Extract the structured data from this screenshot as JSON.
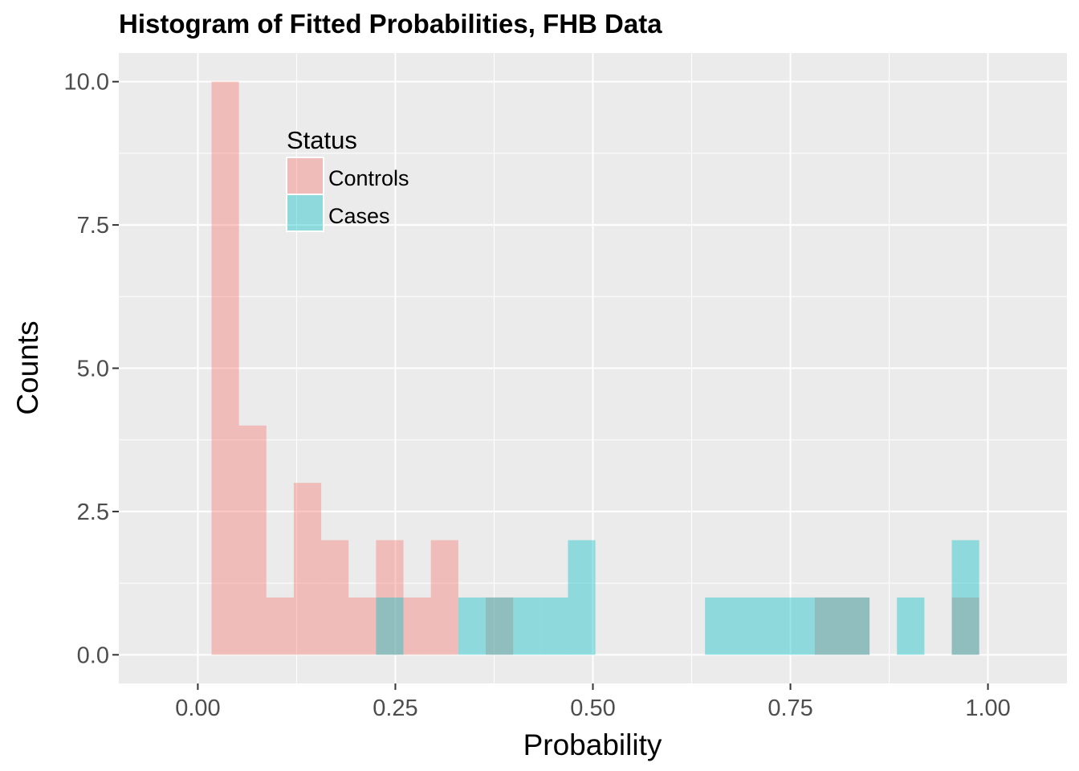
{
  "chart_data": {
    "type": "bar",
    "title": "Histogram of Fitted Probabilities, FHB Data",
    "xlabel": "Probability",
    "ylabel": "Counts",
    "xlim": [
      -0.1,
      1.1
    ],
    "ylim": [
      -0.5,
      10.5
    ],
    "x_ticks": [
      0.0,
      0.25,
      0.5,
      0.75,
      1.0
    ],
    "x_tick_labels": [
      "0.00",
      "0.25",
      "0.50",
      "0.75",
      "1.00"
    ],
    "y_ticks": [
      0.0,
      2.5,
      5.0,
      7.5,
      10.0
    ],
    "y_tick_labels": [
      "0.0",
      "2.5",
      "5.0",
      "7.5",
      "10.0"
    ],
    "grid": true,
    "legend": {
      "title": "Status",
      "placement": "top-left-inside",
      "entries": [
        {
          "label": "Controls",
          "color": "#F8766D"
        },
        {
          "label": "Cases",
          "color": "#00BFC4"
        }
      ]
    },
    "bin_width": 0.0347,
    "first_bin_center": 0.0347,
    "series": [
      {
        "name": "Controls",
        "color": "#F8766D",
        "values": [
          10,
          4,
          1,
          3,
          2,
          1,
          2,
          1,
          2,
          0,
          1,
          0,
          0,
          0,
          0,
          0,
          0,
          0,
          0,
          0,
          0,
          0,
          1,
          1,
          0,
          0,
          0,
          1
        ]
      },
      {
        "name": "Cases",
        "color": "#00BFC4",
        "values": [
          0,
          0,
          0,
          0,
          0,
          0,
          1,
          0,
          0,
          1,
          1,
          1,
          1,
          2,
          0,
          0,
          0,
          0,
          1,
          1,
          1,
          1,
          1,
          1,
          0,
          1,
          0,
          2
        ]
      }
    ]
  }
}
